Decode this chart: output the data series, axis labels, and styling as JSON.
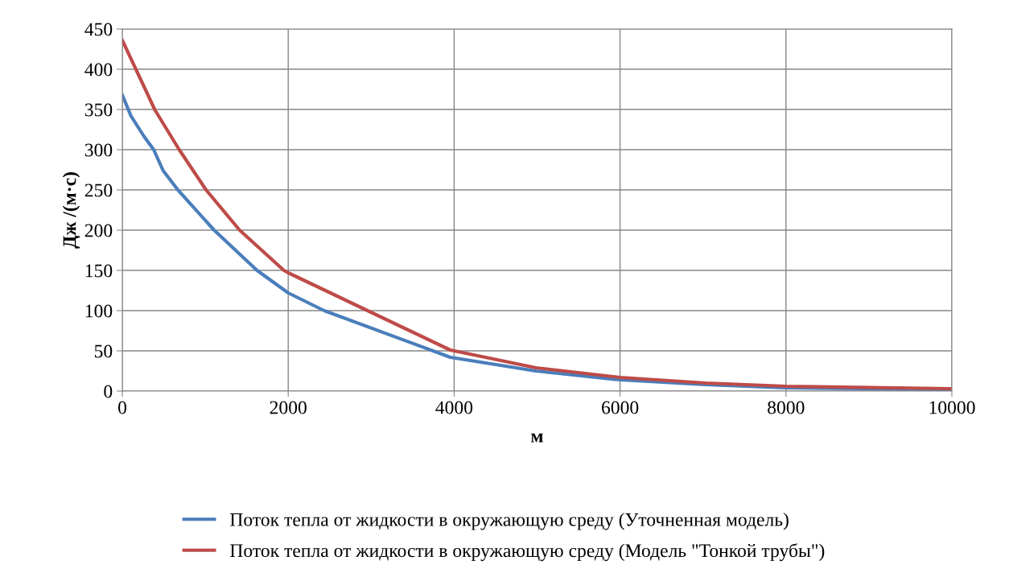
{
  "chart_data": {
    "type": "line",
    "xlabel": "м",
    "ylabel": "Дж /(м·с)",
    "xlim": [
      0,
      10000
    ],
    "xticks": [
      0,
      2000,
      4000,
      6000,
      8000,
      10000
    ],
    "ylim": [
      0,
      450
    ],
    "yticks": [
      0,
      50,
      100,
      150,
      200,
      250,
      300,
      350,
      400,
      450
    ],
    "grid": true,
    "legend": "bottom",
    "marker": "none",
    "line_style": "solid",
    "series": [
      {
        "name": "Поток тепла от жидкости в окружающую среду (Уточненная модель)",
        "color": "#4a7ebb",
        "x": [
          0,
          104,
          265,
          379,
          492,
          670,
          1107,
          1624,
          2000,
          2433,
          3954,
          4985,
          6000,
          7030,
          8000,
          10000
        ],
        "values": [
          368,
          342,
          316,
          300,
          274,
          250,
          200,
          150,
          122,
          100,
          42,
          25,
          14,
          8,
          4,
          2
        ]
      },
      {
        "name": "Поток тепла от жидкости в окружающую среду (Модель \"Тонкой трубы\")",
        "color": "#be4b48",
        "x": [
          0,
          395,
          686,
          1010,
          1414,
          1948,
          2000,
          3954,
          4985,
          6000,
          7030,
          8000,
          10000
        ],
        "values": [
          436,
          349,
          300,
          250,
          200,
          150,
          147,
          51,
          29,
          17,
          10,
          6,
          3
        ]
      }
    ]
  }
}
